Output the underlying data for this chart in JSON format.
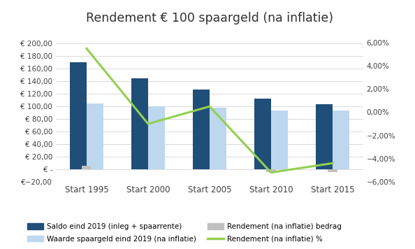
{
  "title": "Rendement € 100 spaargeld (na inflatie)",
  "categories": [
    "Start 1995",
    "Start 2000",
    "Start 2005",
    "Start 2010",
    "Start 2015"
  ],
  "saldo": [
    170,
    145,
    127,
    113,
    103
  ],
  "waarde": [
    105,
    100,
    98,
    94,
    94
  ],
  "rendement_bedrag": [
    5,
    0,
    0,
    -5,
    -5
  ],
  "rendement_pct": [
    0.055,
    -0.01,
    0.005,
    -0.052,
    -0.044
  ],
  "color_dark_blue": "#1F4E79",
  "color_light_blue": "#BDD7EE",
  "color_gray": "#BFBFBF",
  "color_green": "#92D050",
  "ylim_left": [
    -20,
    220
  ],
  "ylim_right": [
    -0.06,
    0.07
  ],
  "yticks_left": [
    -20,
    0,
    20,
    40,
    60,
    80,
    100,
    120,
    140,
    160,
    180,
    200
  ],
  "yticks_right": [
    -0.06,
    -0.04,
    -0.02,
    0.0,
    0.02,
    0.04,
    0.06
  ],
  "legend1": "Saldo eind 2019 (inleg + spaarrente)",
  "legend2": "Waarde spaargeld eind 2019 (na inflatie)",
  "legend3": "Rendement (na inflatie) bedrag",
  "legend4": "Rendement (na inflatie) %",
  "background_color": "#FFFFFF",
  "grid_color": "#D3D3D3"
}
